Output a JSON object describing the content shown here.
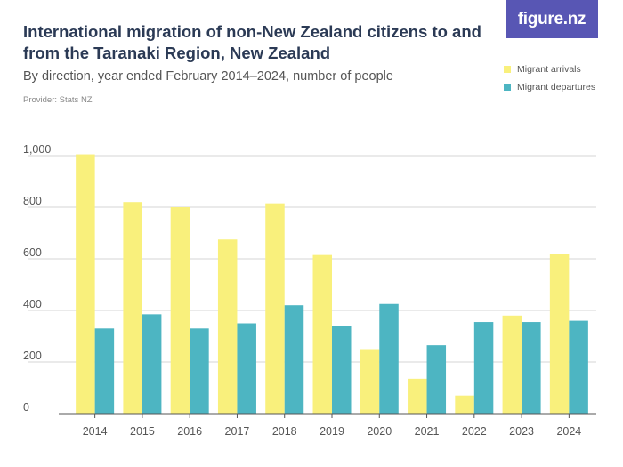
{
  "header": {
    "title": "International migration of non-New Zealand citizens to and from the Taranaki Region, New Zealand",
    "subtitle": "By direction, year ended February 2014–2024, number of people",
    "provider": "Provider: Stats NZ",
    "logo_text": "figure.nz"
  },
  "colors": {
    "arrivals": "#f9f07c",
    "departures": "#4db5c2",
    "logo_bg": "#5856b4",
    "grid": "#d4d4d4"
  },
  "chart_data": {
    "type": "bar",
    "title": "International migration of non-New Zealand citizens to and from the Taranaki Region, New Zealand",
    "subtitle": "By direction, year ended February 2014–2024, number of people",
    "xlabel": "",
    "ylabel": "",
    "categories": [
      "2014",
      "2015",
      "2016",
      "2017",
      "2018",
      "2019",
      "2020",
      "2021",
      "2022",
      "2023",
      "2024"
    ],
    "series": [
      {
        "name": "Migrant arrivals",
        "color": "#f9f07c",
        "values": [
          1005,
          820,
          800,
          675,
          815,
          615,
          250,
          135,
          70,
          380,
          620
        ]
      },
      {
        "name": "Migrant departures",
        "color": "#4db5c2",
        "values": [
          330,
          385,
          330,
          350,
          420,
          340,
          425,
          265,
          355,
          355,
          360
        ]
      }
    ],
    "y_ticks": [
      "0",
      "200",
      "400",
      "600",
      "800",
      "1,000"
    ],
    "ylim": [
      0,
      1000
    ],
    "grid": true,
    "legend": "top-right"
  }
}
